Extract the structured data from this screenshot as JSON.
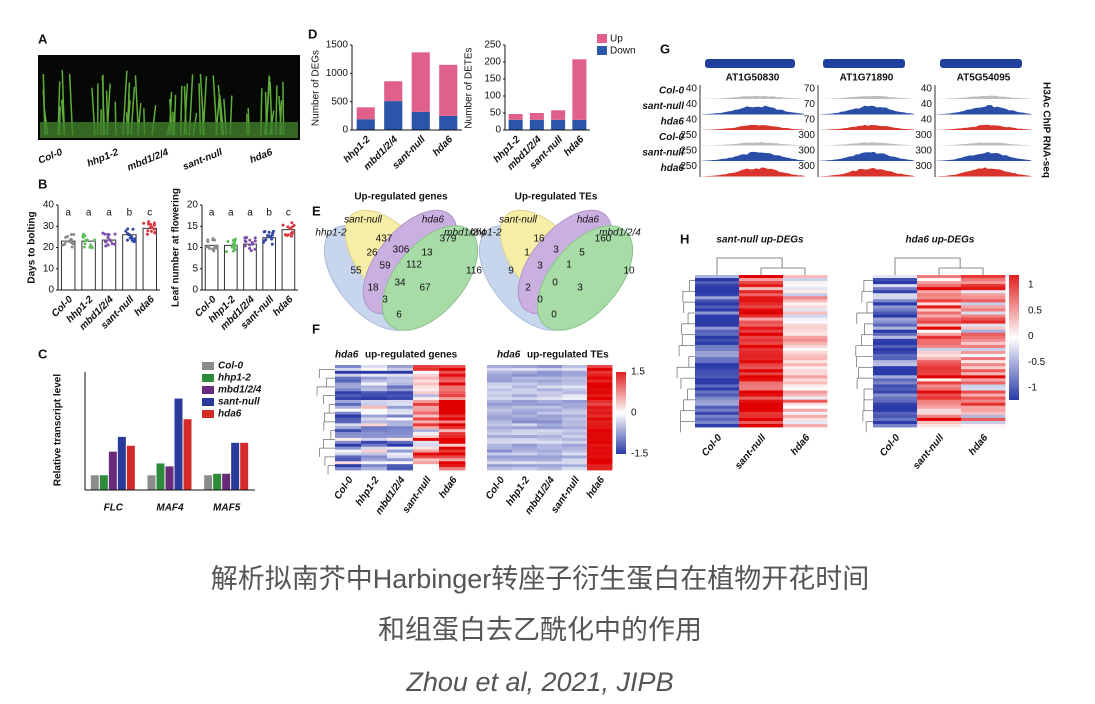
{
  "figure": {
    "panel_a": {
      "label": "A",
      "genotypes": [
        "Col-0",
        "hhp1-2",
        "mbd1/2/4",
        "sant-null",
        "hda6"
      ]
    },
    "panel_b": {
      "label": "B",
      "categories": [
        "Col-0",
        "hhp1-2",
        "mbd1/2/4",
        "sant-null",
        "hda6"
      ],
      "colors": [
        "#8a8a8a",
        "#5cc05c",
        "#7b4fa8",
        "#3346a8",
        "#d9363e"
      ],
      "charts": [
        {
          "ylabel": "Days to bolting",
          "ylim": [
            0,
            40
          ],
          "yticks": [
            0,
            10,
            20,
            30,
            40
          ],
          "values": [
            23,
            23,
            23.5,
            26,
            29
          ],
          "letters": [
            "a",
            "a",
            "a",
            "b",
            "c"
          ]
        },
        {
          "ylabel": "Leaf number at flowering",
          "ylim": [
            0,
            20
          ],
          "yticks": [
            0,
            5,
            10,
            15,
            20
          ],
          "values": [
            10.5,
            10.5,
            10.8,
            12.3,
            14.2
          ],
          "letters": [
            "a",
            "a",
            "a",
            "b",
            "c"
          ]
        }
      ]
    },
    "panel_c": {
      "label": "C",
      "ylabel": "Relative transcript level",
      "ylim": [
        0,
        8
      ],
      "categories": [
        "FLC",
        "MAF4",
        "MAF5"
      ],
      "series": [
        {
          "name": "Col-0",
          "color": "#8c8c8c",
          "values": [
            1,
            1,
            1
          ]
        },
        {
          "name": "hhp1-2",
          "color": "#2e8b3a",
          "values": [
            1,
            1.8,
            1.1
          ]
        },
        {
          "name": "mbd1/2/4",
          "color": "#6a2a7a",
          "values": [
            2.6,
            1.6,
            1.1
          ]
        },
        {
          "name": "sant-null",
          "color": "#2a3a9a",
          "values": [
            3.6,
            6.2,
            3.2
          ]
        },
        {
          "name": "hda6",
          "color": "#d42a2a",
          "values": [
            3.0,
            4.8,
            3.2
          ]
        }
      ]
    },
    "panel_d": {
      "label": "D",
      "categories": [
        "hhp1-2",
        "mbd1/2/4",
        "sant-null",
        "hda6"
      ],
      "charts": [
        {
          "ylabel": "Number of DEGs",
          "ylim": [
            0,
            1500
          ],
          "yticks": [
            0,
            500,
            1000,
            1500
          ],
          "series": [
            {
              "name": "Down",
              "color": "#2a55a8",
              "values": [
                190,
                510,
                320,
                250
              ]
            },
            {
              "name": "Up",
              "color": "#e0608a",
              "values": [
                210,
                350,
                1050,
                900
              ]
            }
          ]
        },
        {
          "ylabel": "Number of DETEs",
          "ylim": [
            0,
            250
          ],
          "yticks": [
            0,
            50,
            100,
            150,
            200,
            250
          ],
          "series": [
            {
              "name": "Down",
              "color": "#2a55a8",
              "values": [
                30,
                30,
                30,
                30
              ]
            },
            {
              "name": "Up",
              "color": "#e0608a",
              "values": [
                17,
                20,
                28,
                178
              ]
            }
          ]
        }
      ]
    },
    "panel_e": {
      "label": "E",
      "sets": [
        "hhp1-2",
        "sant-null",
        "hda6",
        "mbd1/2/4"
      ],
      "venns": [
        {
          "title": "Up-regulated genes",
          "counts": [
            55,
            437,
            379,
            116,
            26,
            306,
            13,
            59,
            112,
            34,
            18,
            67,
            3,
            6
          ]
        },
        {
          "title": "Up-regulated TEs",
          "counts": [
            9,
            16,
            160,
            10,
            1,
            3,
            5,
            3,
            1,
            0,
            2,
            3,
            0,
            0
          ]
        }
      ]
    },
    "panel_f": {
      "label": "F",
      "titles": [
        "hda6",
        "up-regulated genes",
        "hda6",
        "up-regulated TEs"
      ],
      "columns": [
        "Col-0",
        "hhp1-2",
        "mbd1/2/4",
        "sant-null",
        "hda6"
      ],
      "scale": [
        1.5,
        0,
        -1.5
      ]
    },
    "panel_g": {
      "label": "G",
      "genes": [
        "AT1G50830",
        "AT1G71890",
        "AT5G54095"
      ],
      "tracks": [
        "Col-0",
        "sant-null",
        "hda6",
        "Col-0",
        "sant-null",
        "hda6"
      ],
      "scales": [
        [
          40,
          40,
          40,
          250,
          250,
          250
        ],
        [
          70,
          70,
          70,
          300,
          300,
          300
        ],
        [
          40,
          40,
          40,
          300,
          300,
          300
        ]
      ],
      "side_label": "H3Ac ChIP RNA-seq"
    },
    "panel_h": {
      "label": "H",
      "titles": [
        "sant-null up-DEGs",
        "hda6 up-DEGs"
      ],
      "columns": [
        "Col-0",
        "sant-null",
        "hda6"
      ],
      "scale": [
        1,
        0.5,
        0,
        -0.5,
        -1
      ]
    },
    "caption": {
      "line1": "解析拟南芥中Harbinger转座子衍生蛋白在植物开花时间",
      "line2": "和组蛋白去乙酰化中的作用",
      "citation": "Zhou et al, 2021, JIPB"
    }
  }
}
